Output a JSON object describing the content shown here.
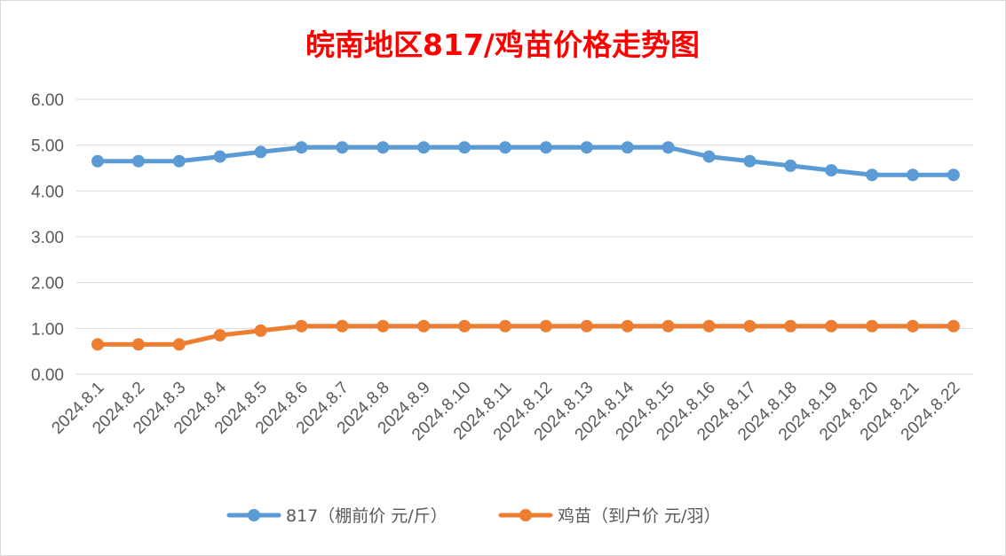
{
  "chart_data": {
    "type": "line",
    "title": "皖南地区817/鸡苗价格走势图",
    "xlabel": "",
    "ylabel": "",
    "ylim": [
      0,
      6
    ],
    "yticks": [
      "0.00",
      "1.00",
      "2.00",
      "3.00",
      "4.00",
      "5.00",
      "6.00"
    ],
    "grid": true,
    "legend_position": "bottom",
    "categories": [
      "2024.8.1",
      "2024.8.2",
      "2024.8.3",
      "2024.8.4",
      "2024.8.5",
      "2024.8.6",
      "2024.8.7",
      "2024.8.8",
      "2024.8.9",
      "2024.8.10",
      "2024.8.11",
      "2024.8.12",
      "2024.8.13",
      "2024.8.14",
      "2024.8.15",
      "2024.8.16",
      "2024.8.17",
      "2024.8.18",
      "2024.8.19",
      "2024.8.20",
      "2024.8.21",
      "2024.8.22"
    ],
    "series": [
      {
        "name": "817（棚前价 元/斤）",
        "color": "#5b9bd5",
        "values": [
          4.65,
          4.65,
          4.65,
          4.75,
          4.85,
          4.95,
          4.95,
          4.95,
          4.95,
          4.95,
          4.95,
          4.95,
          4.95,
          4.95,
          4.95,
          4.75,
          4.65,
          4.55,
          4.45,
          4.35,
          4.35,
          4.35
        ]
      },
      {
        "name": "鸡苗（到户价 元/羽）",
        "color": "#ed7d31",
        "values": [
          0.65,
          0.65,
          0.65,
          0.85,
          0.95,
          1.05,
          1.05,
          1.05,
          1.05,
          1.05,
          1.05,
          1.05,
          1.05,
          1.05,
          1.05,
          1.05,
          1.05,
          1.05,
          1.05,
          1.05,
          1.05,
          1.05
        ]
      }
    ]
  }
}
